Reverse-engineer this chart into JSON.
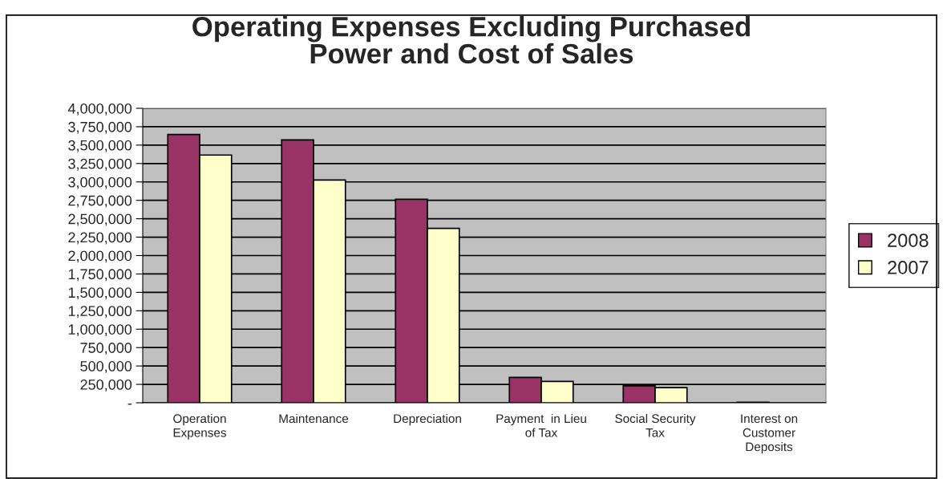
{
  "chart_data": {
    "type": "bar",
    "title": "Operating Expenses Excluding Purchased\nPower and Cost of Sales",
    "categories": [
      "Operation\nExpenses",
      "Maintenance",
      "Depreciation",
      "Payment  in Lieu\nof Tax",
      "Social Security\nTax",
      "Interest on\nCustomer\nDeposits"
    ],
    "series": [
      {
        "name": "2008",
        "color": "#993366",
        "values": [
          3645000,
          3570000,
          2765000,
          345000,
          230000,
          8000
        ]
      },
      {
        "name": "2007",
        "color": "#ffffcc",
        "values": [
          3365000,
          3025000,
          2370000,
          290000,
          205000,
          null
        ]
      }
    ],
    "ylim": [
      0,
      4000000
    ],
    "yticks": [
      {
        "value": 0,
        "label": "-"
      },
      {
        "value": 250000,
        "label": "250,000"
      },
      {
        "value": 500000,
        "label": "500,000"
      },
      {
        "value": 750000,
        "label": "750,000"
      },
      {
        "value": 1000000,
        "label": "1,000,000"
      },
      {
        "value": 1250000,
        "label": "1,250,000"
      },
      {
        "value": 1500000,
        "label": "1,500,000"
      },
      {
        "value": 1750000,
        "label": "1,750,000"
      },
      {
        "value": 2000000,
        "label": "2,000,000"
      },
      {
        "value": 2250000,
        "label": "2,250,000"
      },
      {
        "value": 2500000,
        "label": "2,500,000"
      },
      {
        "value": 2750000,
        "label": "2,750,000"
      },
      {
        "value": 3000000,
        "label": "3,000,000"
      },
      {
        "value": 3250000,
        "label": "3,250,000"
      },
      {
        "value": 3500000,
        "label": "3,500,000"
      },
      {
        "value": 3750000,
        "label": "3,750,000"
      },
      {
        "value": 4000000,
        "label": "4,000,000"
      }
    ],
    "grid": "y",
    "legend": "right"
  }
}
